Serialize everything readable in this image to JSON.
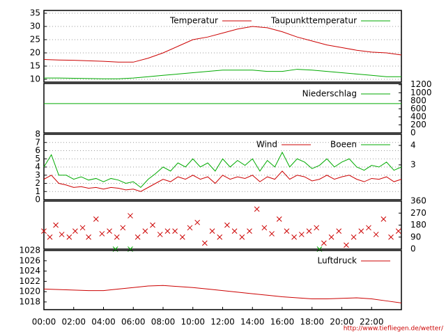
{
  "chart_data": [
    {
      "type": "line",
      "x": [
        0,
        1,
        2,
        3,
        4,
        5,
        6,
        7,
        8,
        9,
        10,
        11,
        12,
        13,
        14,
        15,
        16,
        17,
        18,
        19,
        20,
        21,
        22,
        23,
        24
      ],
      "series": [
        {
          "name": "Temperatur",
          "color": "#cc0000",
          "values": [
            17.5,
            17.3,
            17.2,
            17,
            16.8,
            16.5,
            16.5,
            18,
            20,
            22.5,
            25,
            26,
            27.5,
            29,
            30,
            29.5,
            28,
            26,
            24.5,
            23,
            22,
            21,
            20.3,
            20,
            19.2
          ]
        },
        {
          "name": "Taupunkttemperatur",
          "color": "#00aa00",
          "values": [
            10.5,
            10.5,
            10.4,
            10.3,
            10.2,
            10.2,
            10.5,
            11,
            11.5,
            12,
            12.5,
            13,
            13.5,
            13.5,
            13.5,
            13,
            13,
            13.8,
            13.5,
            13,
            12.5,
            12,
            11.5,
            11,
            11
          ]
        }
      ],
      "xlim": [
        0,
        24
      ],
      "ylim": [
        8.95,
        36.05
      ],
      "yticks": [
        10,
        15,
        20,
        25,
        30,
        35
      ],
      "grid": true,
      "legend": "upper right"
    },
    {
      "type": "line",
      "x": [
        0,
        24
      ],
      "series": [
        {
          "name": "Niederschlag",
          "color": "#00aa00",
          "axis": "y2",
          "values": [
            730,
            730
          ]
        }
      ],
      "xlim": [
        0,
        24
      ],
      "y2lim": [
        0,
        1230
      ],
      "y2ticks": [
        0,
        200,
        400,
        600,
        800,
        1000,
        1200
      ],
      "grid": false,
      "legend": "upper right"
    },
    {
      "type": "line",
      "x": [
        0,
        0.5,
        1,
        1.5,
        2,
        2.5,
        3,
        3.5,
        4,
        4.5,
        5,
        5.5,
        6,
        6.5,
        7,
        7.5,
        8,
        8.5,
        9,
        9.5,
        10,
        10.5,
        11,
        11.5,
        12,
        12.5,
        13,
        13.5,
        14,
        14.5,
        15,
        15.5,
        16,
        16.5,
        17,
        17.5,
        18,
        18.5,
        19,
        19.5,
        20,
        20.5,
        21,
        21.5,
        22,
        22.5,
        23,
        23.5,
        24
      ],
      "series": [
        {
          "name": "Wind",
          "color": "#cc0000",
          "values": [
            2.5,
            3,
            2,
            1.8,
            1.5,
            1.6,
            1.4,
            1.5,
            1.3,
            1.5,
            1.4,
            1.2,
            1.3,
            1,
            1.5,
            2,
            2.5,
            2.2,
            2.8,
            2.5,
            3,
            2.5,
            2.8,
            2,
            3,
            2.5,
            2.8,
            2.6,
            3,
            2.2,
            2.8,
            2.5,
            3.5,
            2.5,
            3,
            2.8,
            2.3,
            2.5,
            3,
            2.5,
            2.8,
            3,
            2.5,
            2.2,
            2.6,
            2.5,
            2.8,
            2.2,
            2.5
          ]
        },
        {
          "name": "Boeen",
          "color": "#00aa00",
          "values": [
            4,
            5.5,
            3,
            3,
            2.5,
            2.8,
            2.4,
            2.6,
            2.2,
            2.6,
            2.4,
            2,
            2.2,
            1.5,
            2.5,
            3.2,
            4,
            3.5,
            4.5,
            4,
            5,
            4,
            4.5,
            3.5,
            5,
            4,
            4.8,
            4.2,
            5,
            3.5,
            4.8,
            4,
            5.8,
            4,
            5,
            4.6,
            3.8,
            4.2,
            5,
            4,
            4.6,
            5,
            4,
            3.6,
            4.2,
            4,
            4.6,
            3.6,
            4
          ]
        }
      ],
      "xlim": [
        0,
        24
      ],
      "ylim": [
        0,
        8
      ],
      "yticks": [
        0,
        1,
        2,
        3,
        4,
        5,
        6,
        7,
        8
      ],
      "y2lim": [
        1.21,
        4.57
      ],
      "y2ticks": [
        3,
        4
      ],
      "grid": true,
      "legend": "upper right"
    },
    {
      "type": "scatter",
      "series": [
        {
          "color": "#cc0000",
          "x": [
            0,
            0.4,
            0.8,
            1.2,
            1.7,
            2.1,
            2.6,
            3,
            3.5,
            3.9,
            4.4,
            4.9,
            5.3,
            5.8,
            6.3,
            6.8,
            7.3,
            7.8,
            8.3,
            8.8,
            9.3,
            9.8,
            10.3,
            10.8,
            11.3,
            11.8,
            12.3,
            12.8,
            13.3,
            13.8,
            14.3,
            14.8,
            15.3,
            15.8,
            16.3,
            16.8,
            17.3,
            17.8,
            18.3,
            18.8,
            19.3,
            19.8,
            20.3,
            20.8,
            21.3,
            21.8,
            22.3,
            22.8,
            23.3,
            23.8
          ],
          "values": [
            135,
            90,
            180,
            110,
            90,
            135,
            160,
            90,
            225,
            115,
            135,
            90,
            160,
            250,
            90,
            135,
            180,
            110,
            135,
            135,
            90,
            160,
            200,
            45,
            135,
            90,
            180,
            135,
            90,
            135,
            300,
            160,
            115,
            225,
            135,
            90,
            110,
            135,
            160,
            45,
            90,
            135,
            30,
            90,
            135,
            160,
            110,
            225,
            90,
            135
          ]
        },
        {
          "color": "#00aa00",
          "x": [
            4.8,
            5.8,
            18.5
          ],
          "values": [
            0,
            0,
            0
          ]
        }
      ],
      "xlim": [
        0,
        24
      ],
      "y2lim": [
        0,
        360
      ],
      "y2ticks": [
        0,
        90,
        180,
        270,
        360
      ],
      "grid": false
    },
    {
      "type": "line",
      "x": [
        0,
        1,
        2,
        3,
        4,
        5,
        6,
        7,
        8,
        9,
        10,
        11,
        12,
        13,
        14,
        15,
        16,
        17,
        18,
        19,
        20,
        21,
        22,
        23,
        24
      ],
      "series": [
        {
          "name": "Luftdruck",
          "color": "#cc0000",
          "values": [
            1020.5,
            1020.4,
            1020.3,
            1020.2,
            1020.2,
            1020.5,
            1020.8,
            1021.1,
            1021.2,
            1021,
            1020.8,
            1020.5,
            1020.2,
            1019.9,
            1019.6,
            1019.3,
            1019,
            1018.8,
            1018.6,
            1018.6,
            1018.7,
            1018.8,
            1018.6,
            1018.2,
            1017.8
          ]
        }
      ],
      "xlim": [
        0,
        24
      ],
      "ylim": [
        1016.5,
        1028
      ],
      "yticks": [
        1018,
        1020,
        1022,
        1024,
        1026,
        1028
      ],
      "grid": false,
      "legend": "upper right",
      "xticks": [
        {
          "value": 0,
          "label": "00:00"
        },
        {
          "value": 2,
          "label": "02:00"
        },
        {
          "value": 4,
          "label": "04:00"
        },
        {
          "value": 6,
          "label": "06:00"
        },
        {
          "value": 8,
          "label": "08:00"
        },
        {
          "value": 10,
          "label": "10:00"
        },
        {
          "value": 12,
          "label": "12:00"
        },
        {
          "value": 14,
          "label": "14:00"
        },
        {
          "value": 16,
          "label": "16:00"
        },
        {
          "value": 18,
          "label": "18:00"
        },
        {
          "value": 20,
          "label": "20:00"
        },
        {
          "value": 22,
          "label": "22:00"
        }
      ]
    }
  ],
  "footer": "http://www.tiefliegen.de/wetter/"
}
